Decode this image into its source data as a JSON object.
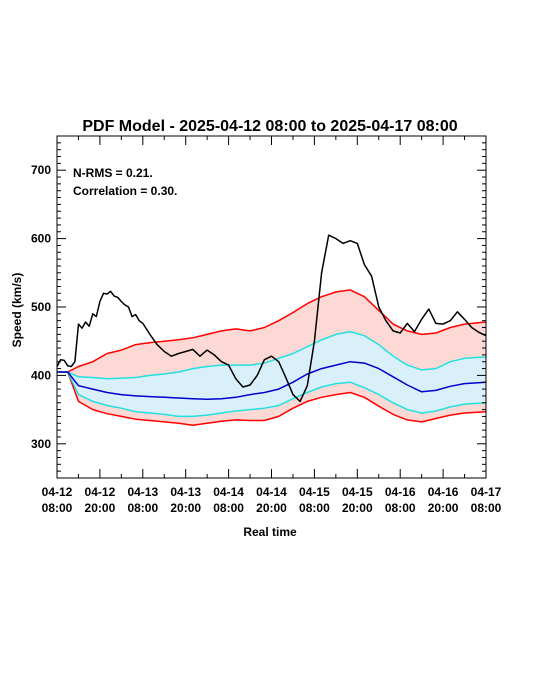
{
  "chart_data": {
    "type": "line",
    "title": "PDF Model - 2025-04-12 08:00 to 2025-04-17 08:00",
    "xlabel": "Real time",
    "ylabel": "Speed (km/s)",
    "ylim": [
      250,
      750
    ],
    "xlim": [
      "2025-04-12 08:00",
      "2025-04-17 08:00"
    ],
    "yticks": [
      300,
      400,
      500,
      600,
      700
    ],
    "xticks": [
      {
        "t": "2025-04-12 08:00",
        "line1": "04-12",
        "line2": "08:00"
      },
      {
        "t": "2025-04-12 20:00",
        "line1": "04-12",
        "line2": "20:00"
      },
      {
        "t": "2025-04-13 08:00",
        "line1": "04-13",
        "line2": "08:00"
      },
      {
        "t": "2025-04-13 20:00",
        "line1": "04-13",
        "line2": "20:00"
      },
      {
        "t": "2025-04-14 08:00",
        "line1": "04-14",
        "line2": "08:00"
      },
      {
        "t": "2025-04-14 20:00",
        "line1": "04-14",
        "line2": "20:00"
      },
      {
        "t": "2025-04-15 08:00",
        "line1": "04-15",
        "line2": "08:00"
      },
      {
        "t": "2025-04-15 20:00",
        "line1": "04-15",
        "line2": "20:00"
      },
      {
        "t": "2025-04-16 08:00",
        "line1": "04-16",
        "line2": "08:00"
      },
      {
        "t": "2025-04-16 20:00",
        "line1": "04-16",
        "line2": "20:00"
      },
      {
        "t": "2025-04-17 08:00",
        "line1": "04-17",
        "line2": "08:00"
      }
    ],
    "annotations": [
      "N-RMS = 0.21.",
      "Correlation = 0.30."
    ],
    "colors": {
      "observed": "#000000",
      "outer_band_line": "#ff0000",
      "outer_band_fill": "#fdd9d6",
      "inner_band_line": "#22e0e0",
      "inner_band_fill": "#d9f0fb",
      "median": "#0000cc"
    },
    "series": [
      {
        "role": "observed",
        "x": [
          "2025-04-12 08:00",
          "2025-04-12 09:00",
          "2025-04-12 10:00",
          "2025-04-12 11:00",
          "2025-04-12 12:00",
          "2025-04-12 13:00",
          "2025-04-12 14:00",
          "2025-04-12 15:00",
          "2025-04-12 16:00",
          "2025-04-12 17:00",
          "2025-04-12 18:00",
          "2025-04-12 19:00",
          "2025-04-12 20:00",
          "2025-04-12 21:00",
          "2025-04-12 22:00",
          "2025-04-12 23:00",
          "2025-04-13 00:00",
          "2025-04-13 01:00",
          "2025-04-13 02:00",
          "2025-04-13 03:00",
          "2025-04-13 04:00",
          "2025-04-13 05:00",
          "2025-04-13 06:00",
          "2025-04-13 07:00",
          "2025-04-13 08:00",
          "2025-04-13 09:00",
          "2025-04-13 10:00",
          "2025-04-13 12:00",
          "2025-04-13 14:00",
          "2025-04-13 16:00",
          "2025-04-13 18:00",
          "2025-04-13 20:00",
          "2025-04-13 22:00",
          "2025-04-14 00:00",
          "2025-04-14 02:00",
          "2025-04-14 04:00",
          "2025-04-14 06:00",
          "2025-04-14 08:00",
          "2025-04-14 10:00",
          "2025-04-14 12:00",
          "2025-04-14 14:00",
          "2025-04-14 16:00",
          "2025-04-14 18:00",
          "2025-04-14 20:00",
          "2025-04-14 22:00",
          "2025-04-15 00:00",
          "2025-04-15 02:00",
          "2025-04-15 04:00",
          "2025-04-15 06:00",
          "2025-04-15 08:00",
          "2025-04-15 10:00",
          "2025-04-15 12:00",
          "2025-04-15 14:00",
          "2025-04-15 16:00",
          "2025-04-15 18:00",
          "2025-04-15 20:00",
          "2025-04-15 22:00",
          "2025-04-16 00:00",
          "2025-04-16 02:00",
          "2025-04-16 04:00",
          "2025-04-16 06:00",
          "2025-04-16 08:00",
          "2025-04-16 10:00",
          "2025-04-16 12:00",
          "2025-04-16 14:00",
          "2025-04-16 16:00",
          "2025-04-16 18:00",
          "2025-04-16 20:00",
          "2025-04-16 22:00",
          "2025-04-17 00:00",
          "2025-04-17 02:00",
          "2025-04-17 04:00",
          "2025-04-17 06:00",
          "2025-04-17 08:00"
        ],
        "y": [
          413,
          423,
          422,
          414,
          413,
          420,
          475,
          469,
          478,
          472,
          490,
          486,
          508,
          520,
          519,
          523,
          516,
          514,
          508,
          503,
          500,
          486,
          489,
          480,
          476,
          468,
          460,
          445,
          435,
          428,
          432,
          435,
          438,
          428,
          437,
          430,
          420,
          415,
          395,
          383,
          386,
          400,
          423,
          428,
          420,
          397,
          372,
          362,
          385,
          450,
          550,
          605,
          600,
          593,
          597,
          593,
          562,
          545,
          500,
          480,
          465,
          462,
          476,
          464,
          482,
          497,
          476,
          475,
          480,
          493,
          482,
          470,
          463,
          458
        ]
      },
      {
        "role": "upper_outer",
        "x": [
          "2025-04-12 08:00",
          "2025-04-12 11:00",
          "2025-04-12 14:00",
          "2025-04-12 18:00",
          "2025-04-12 22:00",
          "2025-04-13 02:00",
          "2025-04-13 06:00",
          "2025-04-13 10:00",
          "2025-04-13 14:00",
          "2025-04-13 18:00",
          "2025-04-13 22:00",
          "2025-04-14 02:00",
          "2025-04-14 06:00",
          "2025-04-14 10:00",
          "2025-04-14 14:00",
          "2025-04-14 18:00",
          "2025-04-14 22:00",
          "2025-04-15 02:00",
          "2025-04-15 06:00",
          "2025-04-15 10:00",
          "2025-04-15 14:00",
          "2025-04-15 18:00",
          "2025-04-15 22:00",
          "2025-04-16 02:00",
          "2025-04-16 06:00",
          "2025-04-16 10:00",
          "2025-04-16 14:00",
          "2025-04-16 18:00",
          "2025-04-16 22:00",
          "2025-04-17 02:00",
          "2025-04-17 08:00"
        ],
        "y": [
          405,
          405,
          413,
          420,
          432,
          437,
          445,
          448,
          450,
          452,
          455,
          460,
          465,
          468,
          465,
          470,
          480,
          492,
          505,
          515,
          522,
          525,
          515,
          495,
          475,
          465,
          460,
          462,
          470,
          475,
          478
        ]
      },
      {
        "role": "upper_inner",
        "x": [
          "2025-04-12 08:00",
          "2025-04-12 11:00",
          "2025-04-12 14:00",
          "2025-04-12 18:00",
          "2025-04-12 22:00",
          "2025-04-13 02:00",
          "2025-04-13 06:00",
          "2025-04-13 10:00",
          "2025-04-13 14:00",
          "2025-04-13 18:00",
          "2025-04-13 22:00",
          "2025-04-14 02:00",
          "2025-04-14 06:00",
          "2025-04-14 10:00",
          "2025-04-14 14:00",
          "2025-04-14 18:00",
          "2025-04-14 22:00",
          "2025-04-15 02:00",
          "2025-04-15 06:00",
          "2025-04-15 10:00",
          "2025-04-15 14:00",
          "2025-04-15 18:00",
          "2025-04-15 22:00",
          "2025-04-16 02:00",
          "2025-04-16 06:00",
          "2025-04-16 10:00",
          "2025-04-16 14:00",
          "2025-04-16 18:00",
          "2025-04-16 22:00",
          "2025-04-17 02:00",
          "2025-04-17 08:00"
        ],
        "y": [
          405,
          405,
          398,
          397,
          395,
          396,
          397,
          400,
          402,
          405,
          410,
          413,
          415,
          415,
          415,
          418,
          425,
          432,
          442,
          452,
          460,
          464,
          458,
          445,
          428,
          415,
          408,
          410,
          420,
          425,
          427
        ]
      },
      {
        "role": "median",
        "x": [
          "2025-04-12 08:00",
          "2025-04-12 11:00",
          "2025-04-12 14:00",
          "2025-04-12 18:00",
          "2025-04-12 22:00",
          "2025-04-13 02:00",
          "2025-04-13 06:00",
          "2025-04-13 10:00",
          "2025-04-13 14:00",
          "2025-04-13 18:00",
          "2025-04-13 22:00",
          "2025-04-14 02:00",
          "2025-04-14 06:00",
          "2025-04-14 10:00",
          "2025-04-14 14:00",
          "2025-04-14 18:00",
          "2025-04-14 22:00",
          "2025-04-15 02:00",
          "2025-04-15 06:00",
          "2025-04-15 10:00",
          "2025-04-15 14:00",
          "2025-04-15 18:00",
          "2025-04-15 22:00",
          "2025-04-16 02:00",
          "2025-04-16 06:00",
          "2025-04-16 10:00",
          "2025-04-16 14:00",
          "2025-04-16 18:00",
          "2025-04-16 22:00",
          "2025-04-17 02:00",
          "2025-04-17 08:00"
        ],
        "y": [
          405,
          405,
          385,
          380,
          375,
          372,
          370,
          369,
          368,
          367,
          366,
          365,
          366,
          368,
          372,
          375,
          380,
          390,
          402,
          410,
          415,
          420,
          418,
          410,
          398,
          386,
          376,
          378,
          384,
          388,
          390
        ]
      },
      {
        "role": "lower_inner",
        "x": [
          "2025-04-12 08:00",
          "2025-04-12 11:00",
          "2025-04-12 14:00",
          "2025-04-12 18:00",
          "2025-04-12 22:00",
          "2025-04-13 02:00",
          "2025-04-13 06:00",
          "2025-04-13 10:00",
          "2025-04-13 14:00",
          "2025-04-13 18:00",
          "2025-04-13 22:00",
          "2025-04-14 02:00",
          "2025-04-14 06:00",
          "2025-04-14 10:00",
          "2025-04-14 14:00",
          "2025-04-14 18:00",
          "2025-04-14 22:00",
          "2025-04-15 02:00",
          "2025-04-15 06:00",
          "2025-04-15 10:00",
          "2025-04-15 14:00",
          "2025-04-15 18:00",
          "2025-04-15 22:00",
          "2025-04-16 02:00",
          "2025-04-16 06:00",
          "2025-04-16 10:00",
          "2025-04-16 14:00",
          "2025-04-16 18:00",
          "2025-04-16 22:00",
          "2025-04-17 02:00",
          "2025-04-17 08:00"
        ],
        "y": [
          405,
          405,
          372,
          362,
          356,
          352,
          347,
          345,
          343,
          340,
          340,
          342,
          345,
          348,
          350,
          352,
          356,
          366,
          375,
          383,
          388,
          390,
          382,
          372,
          360,
          350,
          345,
          348,
          354,
          358,
          360
        ]
      },
      {
        "role": "lower_outer",
        "x": [
          "2025-04-12 08:00",
          "2025-04-12 11:00",
          "2025-04-12 14:00",
          "2025-04-12 18:00",
          "2025-04-12 22:00",
          "2025-04-13 02:00",
          "2025-04-13 06:00",
          "2025-04-13 10:00",
          "2025-04-13 14:00",
          "2025-04-13 18:00",
          "2025-04-13 22:00",
          "2025-04-14 02:00",
          "2025-04-14 06:00",
          "2025-04-14 10:00",
          "2025-04-14 14:00",
          "2025-04-14 18:00",
          "2025-04-14 22:00",
          "2025-04-15 02:00",
          "2025-04-15 06:00",
          "2025-04-15 10:00",
          "2025-04-15 14:00",
          "2025-04-15 18:00",
          "2025-04-15 22:00",
          "2025-04-16 02:00",
          "2025-04-16 06:00",
          "2025-04-16 10:00",
          "2025-04-16 14:00",
          "2025-04-16 18:00",
          "2025-04-16 22:00",
          "2025-04-17 02:00",
          "2025-04-17 08:00"
        ],
        "y": [
          405,
          405,
          362,
          350,
          344,
          340,
          336,
          334,
          332,
          330,
          327,
          330,
          333,
          335,
          334,
          334,
          340,
          352,
          362,
          368,
          372,
          375,
          368,
          355,
          343,
          335,
          332,
          337,
          342,
          345,
          347
        ]
      }
    ]
  }
}
